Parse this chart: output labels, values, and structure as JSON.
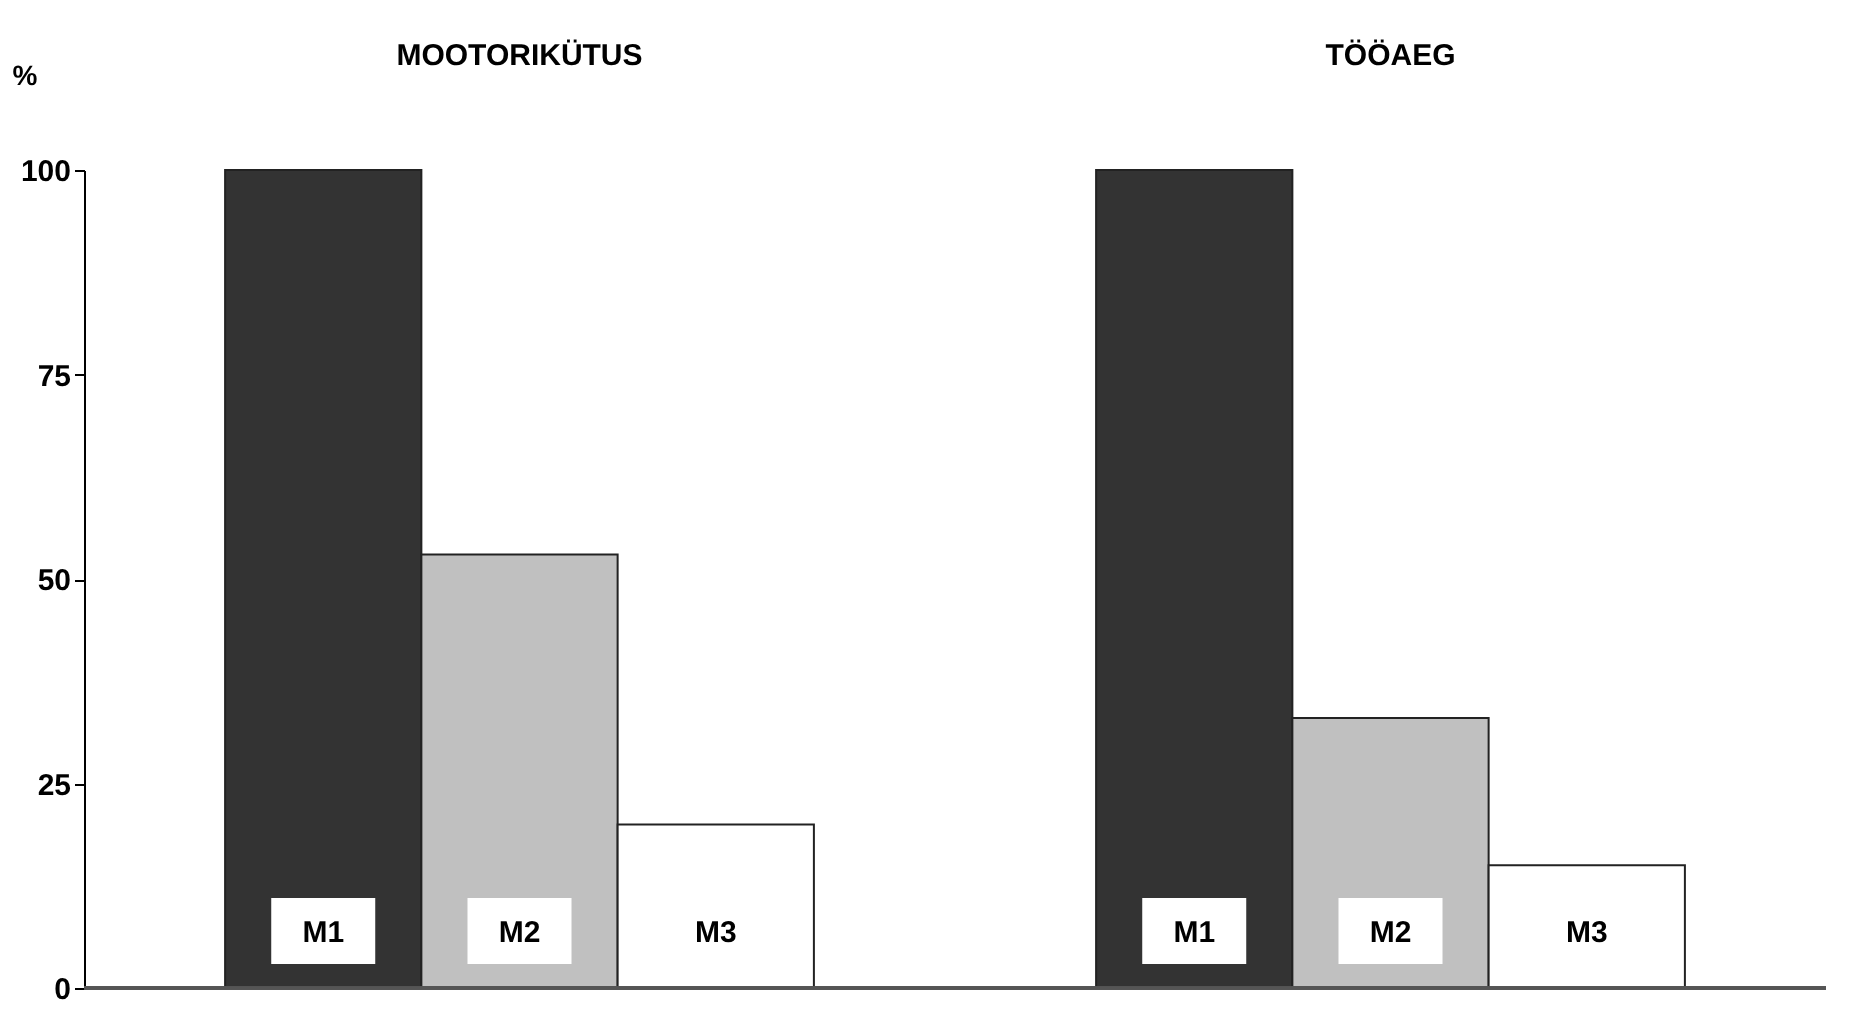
{
  "chart_data": {
    "type": "bar",
    "ylabel": "%",
    "categories": [
      "MOOTORIKÜTUS",
      "TÖÖAEG"
    ],
    "series": [
      {
        "name": "M1",
        "color": "#333333",
        "values": [
          100,
          100
        ]
      },
      {
        "name": "M2",
        "color": "#c0c0c0",
        "values": [
          53,
          33
        ]
      },
      {
        "name": "M3",
        "color": "#ffffff",
        "values": [
          20,
          15
        ]
      }
    ],
    "ylim": [
      0,
      100
    ],
    "yticks": [
      0,
      25,
      50,
      75,
      100
    ]
  }
}
